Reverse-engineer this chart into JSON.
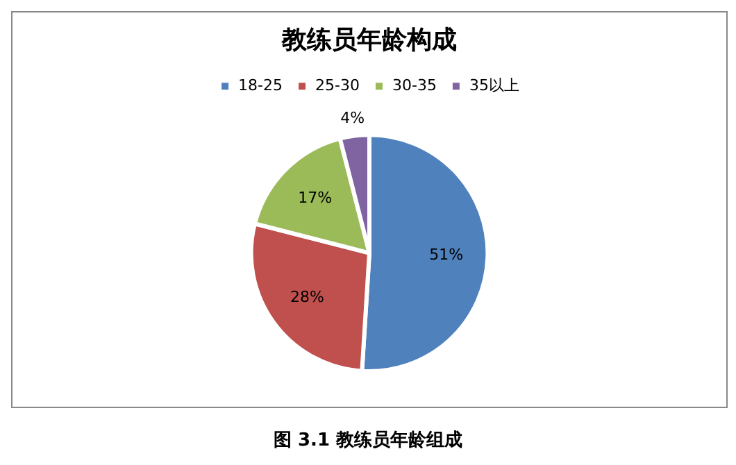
{
  "chart_data": {
    "type": "pie",
    "title": "教练员年龄构成",
    "categories": [
      "18-25",
      "25-30",
      "30-35",
      "35以上"
    ],
    "values": [
      51,
      28,
      17,
      4
    ],
    "colors": [
      "#4f81bd",
      "#c0504d",
      "#9bbb59",
      "#8064a2"
    ],
    "value_labels": [
      "51%",
      "28%",
      "17%",
      "4%"
    ],
    "legend": "top",
    "annotations": [
      "图 3.1  教练员年龄组成"
    ]
  }
}
